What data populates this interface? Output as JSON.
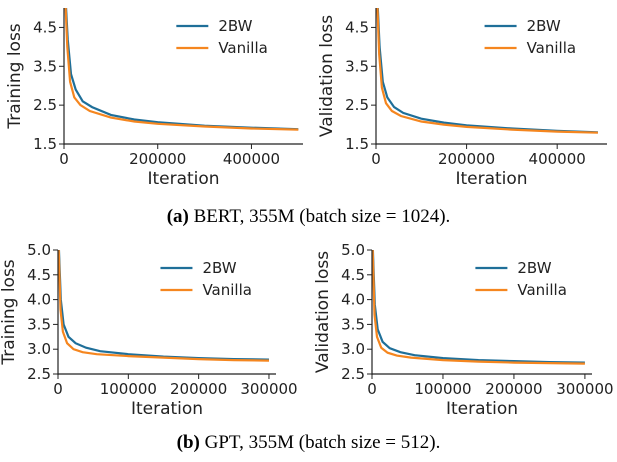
{
  "colors": {
    "2BW": "#1f6f99",
    "Vanilla": "#f5861f",
    "axis": "#222222"
  },
  "captions": [
    {
      "tag": "(a)",
      "text": "BERT, 355M (batch size = 1024)."
    },
    {
      "tag": "(b)",
      "text": "GPT, 355M (batch size = 512)."
    }
  ],
  "chart_data": [
    {
      "type": "line",
      "xlabel": "Iteration",
      "ylabel": "Training loss",
      "xlim": [
        0,
        510000
      ],
      "ylim": [
        1.5,
        5.0
      ],
      "xticks": [
        0,
        200000,
        400000
      ],
      "yticks": [
        1.5,
        2.5,
        3.5,
        4.5
      ],
      "legend": "top-right",
      "series": [
        {
          "name": "2BW",
          "x": [
            0,
            8000,
            15000,
            25000,
            40000,
            60000,
            100000,
            150000,
            200000,
            300000,
            400000,
            500000
          ],
          "y": [
            6.0,
            4.2,
            3.3,
            2.9,
            2.6,
            2.45,
            2.25,
            2.13,
            2.06,
            1.97,
            1.92,
            1.88
          ]
        },
        {
          "name": "Vanilla",
          "x": [
            0,
            7000,
            13000,
            22000,
            35000,
            55000,
            100000,
            150000,
            200000,
            300000,
            400000,
            500000
          ],
          "y": [
            6.0,
            4.0,
            3.1,
            2.7,
            2.5,
            2.35,
            2.18,
            2.08,
            2.02,
            1.95,
            1.9,
            1.87
          ]
        }
      ]
    },
    {
      "type": "line",
      "xlabel": "Iteration",
      "ylabel": "Validation loss",
      "xlim": [
        0,
        510000
      ],
      "ylim": [
        1.5,
        5.0
      ],
      "xticks": [
        0,
        200000,
        400000
      ],
      "yticks": [
        1.5,
        2.5,
        3.5,
        4.5
      ],
      "legend": "top-right",
      "series": [
        {
          "name": "2BW",
          "x": [
            0,
            8000,
            15000,
            25000,
            40000,
            60000,
            100000,
            150000,
            200000,
            300000,
            400000,
            490000
          ],
          "y": [
            6.0,
            4.0,
            3.1,
            2.7,
            2.45,
            2.3,
            2.15,
            2.05,
            1.98,
            1.9,
            1.84,
            1.8
          ]
        },
        {
          "name": "Vanilla",
          "x": [
            0,
            7000,
            13000,
            22000,
            35000,
            55000,
            100000,
            150000,
            200000,
            300000,
            400000,
            490000
          ],
          "y": [
            6.0,
            3.8,
            2.95,
            2.55,
            2.35,
            2.22,
            2.08,
            2.0,
            1.94,
            1.87,
            1.82,
            1.79
          ]
        }
      ]
    },
    {
      "type": "line",
      "xlabel": "Iteration",
      "ylabel": "Training loss",
      "xlim": [
        0,
        310000
      ],
      "ylim": [
        2.5,
        5.0
      ],
      "xticks": [
        0,
        100000,
        200000,
        300000
      ],
      "yticks": [
        2.5,
        3.0,
        3.5,
        4.0,
        4.5,
        5.0
      ],
      "legend": "top-right",
      "series": [
        {
          "name": "2BW",
          "x": [
            0,
            4000,
            8000,
            15000,
            25000,
            40000,
            60000,
            100000,
            150000,
            200000,
            250000,
            300000
          ],
          "y": [
            5.5,
            4.0,
            3.5,
            3.25,
            3.12,
            3.03,
            2.96,
            2.9,
            2.85,
            2.82,
            2.8,
            2.79
          ]
        },
        {
          "name": "Vanilla",
          "x": [
            0,
            3500,
            7000,
            13000,
            22000,
            35000,
            55000,
            100000,
            150000,
            200000,
            250000,
            300000
          ],
          "y": [
            5.5,
            3.8,
            3.35,
            3.12,
            3.0,
            2.94,
            2.9,
            2.86,
            2.83,
            2.8,
            2.78,
            2.77
          ]
        }
      ]
    },
    {
      "type": "line",
      "xlabel": "Iteration",
      "ylabel": "Validation loss",
      "xlim": [
        0,
        310000
      ],
      "ylim": [
        2.5,
        5.0
      ],
      "xticks": [
        0,
        100000,
        200000,
        300000
      ],
      "yticks": [
        2.5,
        3.0,
        3.5,
        4.0,
        4.5,
        5.0
      ],
      "legend": "top-right",
      "series": [
        {
          "name": "2BW",
          "x": [
            0,
            4000,
            8000,
            15000,
            25000,
            40000,
            60000,
            100000,
            150000,
            200000,
            250000,
            300000
          ],
          "y": [
            5.5,
            3.9,
            3.4,
            3.15,
            3.02,
            2.94,
            2.88,
            2.82,
            2.78,
            2.76,
            2.74,
            2.73
          ]
        },
        {
          "name": "Vanilla",
          "x": [
            0,
            3500,
            7000,
            13000,
            22000,
            35000,
            55000,
            100000,
            150000,
            200000,
            250000,
            300000
          ],
          "y": [
            5.5,
            3.7,
            3.25,
            3.03,
            2.93,
            2.87,
            2.83,
            2.78,
            2.75,
            2.73,
            2.72,
            2.71
          ]
        }
      ]
    }
  ]
}
